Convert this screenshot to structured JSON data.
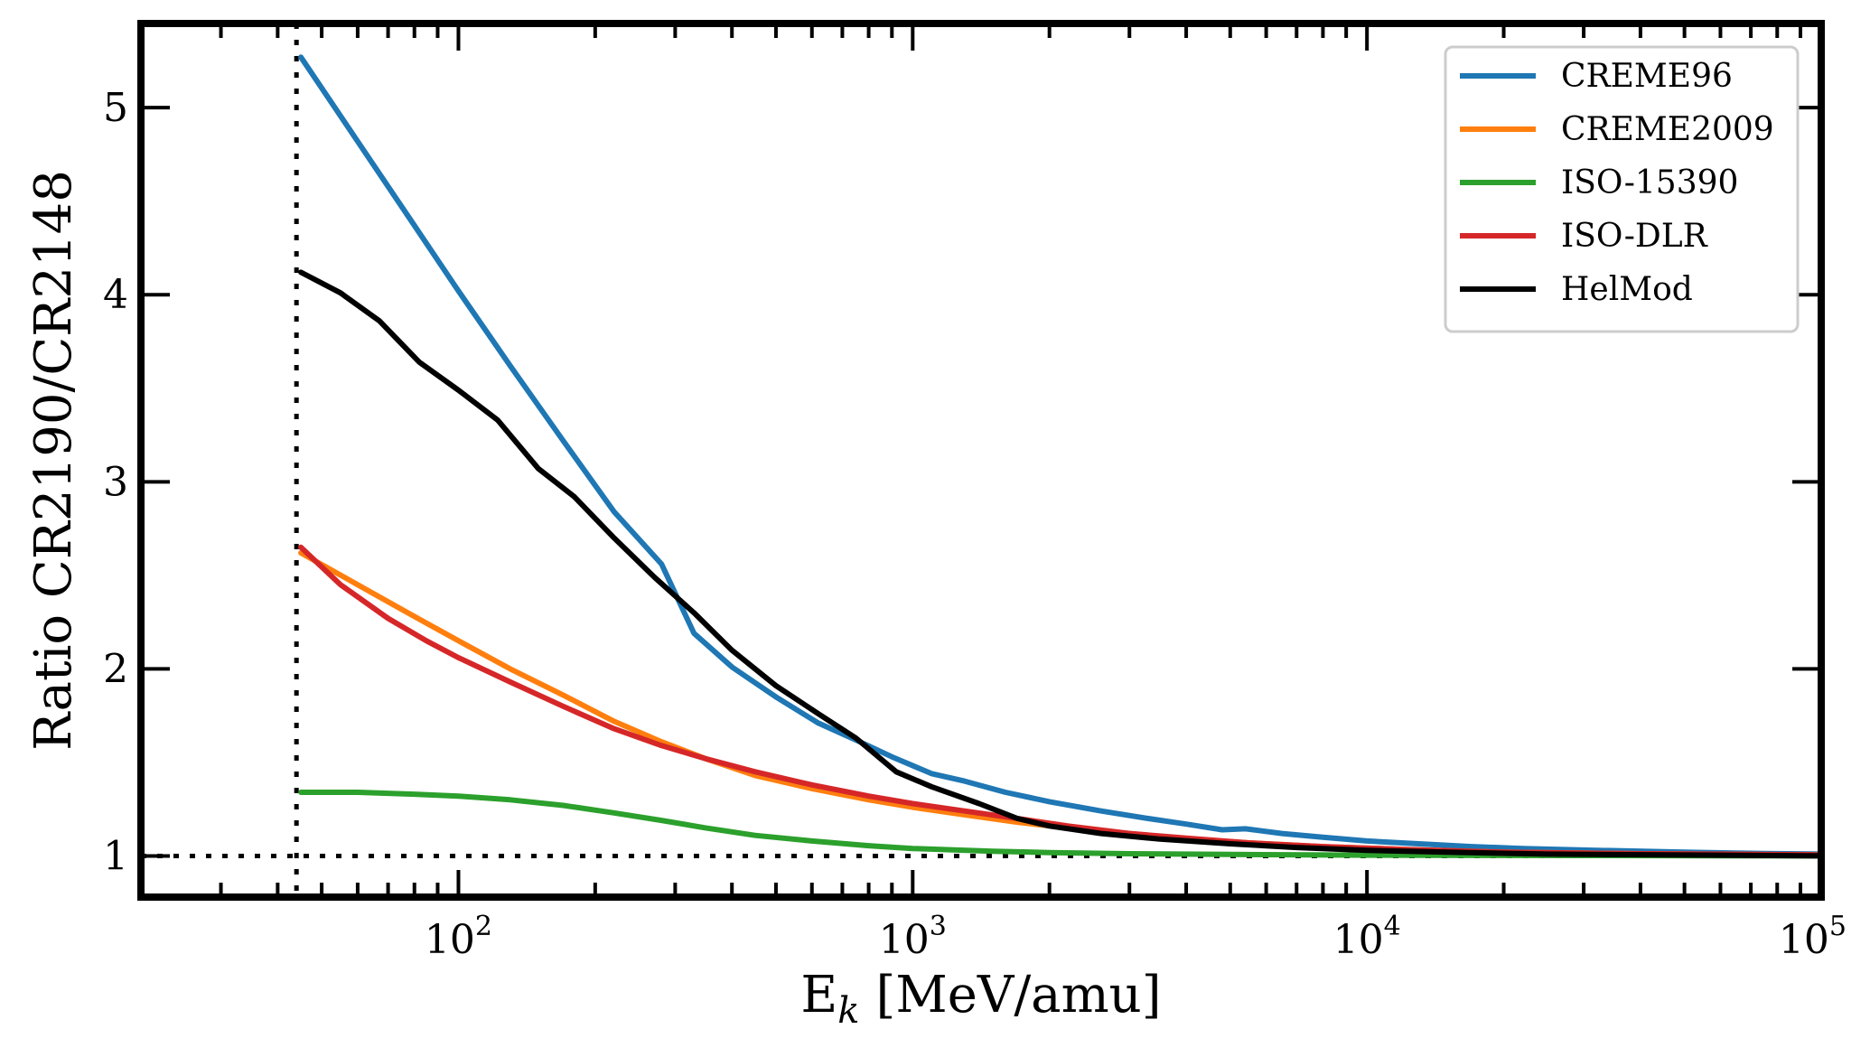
{
  "chart_data": {
    "type": "line",
    "xlabel": "E",
    "xlabel_sub": "k",
    "xlabel_unit": "[MeV/amu]",
    "ylabel": "Ratio CR2190/CR2148",
    "xscale": "log",
    "xlim": [
      20,
      100000
    ],
    "ylim": [
      0.78,
      5.45
    ],
    "x_ticks": [
      {
        "value": 100,
        "base": "10",
        "exp": "2"
      },
      {
        "value": 1000,
        "base": "10",
        "exp": "3"
      },
      {
        "value": 10000,
        "base": "10",
        "exp": "4"
      },
      {
        "value": 100000,
        "base": "10",
        "exp": "5"
      }
    ],
    "y_ticks": [
      {
        "value": 1,
        "label": "1"
      },
      {
        "value": 2,
        "label": "2"
      },
      {
        "value": 3,
        "label": "3"
      },
      {
        "value": 4,
        "label": "4"
      },
      {
        "value": 5,
        "label": "5"
      }
    ],
    "reference_lines": {
      "y": 1,
      "x": 44
    },
    "legend": {
      "position": "top-right"
    },
    "grid": false,
    "series": [
      {
        "name": "CREME96",
        "color": "#1f77b4",
        "points": [
          [
            45,
            5.27
          ],
          [
            60,
            4.82
          ],
          [
            80,
            4.37
          ],
          [
            100,
            4.02
          ],
          [
            130,
            3.62
          ],
          [
            170,
            3.22
          ],
          [
            220,
            2.84
          ],
          [
            280,
            2.56
          ],
          [
            330,
            2.19
          ],
          [
            400,
            2.01
          ],
          [
            500,
            1.85
          ],
          [
            620,
            1.71
          ],
          [
            750,
            1.62
          ],
          [
            900,
            1.53
          ],
          [
            1100,
            1.44
          ],
          [
            1300,
            1.4
          ],
          [
            1600,
            1.34
          ],
          [
            2000,
            1.29
          ],
          [
            2600,
            1.24
          ],
          [
            3300,
            1.2
          ],
          [
            4000,
            1.17
          ],
          [
            4800,
            1.14
          ],
          [
            5400,
            1.145
          ],
          [
            6500,
            1.12
          ],
          [
            8000,
            1.1
          ],
          [
            10000,
            1.08
          ],
          [
            13000,
            1.065
          ],
          [
            17000,
            1.05
          ],
          [
            22000,
            1.04
          ],
          [
            32000,
            1.03
          ],
          [
            50000,
            1.02
          ],
          [
            75000,
            1.013
          ],
          [
            100000,
            1.01
          ]
        ]
      },
      {
        "name": "CREME2009",
        "color": "#ff7f0e",
        "points": [
          [
            45,
            2.62
          ],
          [
            60,
            2.45
          ],
          [
            80,
            2.28
          ],
          [
            100,
            2.15
          ],
          [
            130,
            2.0
          ],
          [
            170,
            1.86
          ],
          [
            220,
            1.72
          ],
          [
            280,
            1.61
          ],
          [
            350,
            1.52
          ],
          [
            450,
            1.43
          ],
          [
            600,
            1.36
          ],
          [
            800,
            1.3
          ],
          [
            1000,
            1.26
          ],
          [
            1300,
            1.22
          ],
          [
            1700,
            1.18
          ],
          [
            2200,
            1.15
          ],
          [
            3000,
            1.12
          ],
          [
            4000,
            1.09
          ],
          [
            5500,
            1.07
          ],
          [
            8000,
            1.05
          ],
          [
            12000,
            1.035
          ],
          [
            20000,
            1.02
          ],
          [
            40000,
            1.012
          ],
          [
            100000,
            1.005
          ]
        ]
      },
      {
        "name": "ISO-15390",
        "color": "#2ca02c",
        "points": [
          [
            45,
            1.34
          ],
          [
            60,
            1.34
          ],
          [
            80,
            1.33
          ],
          [
            100,
            1.32
          ],
          [
            130,
            1.3
          ],
          [
            170,
            1.27
          ],
          [
            220,
            1.23
          ],
          [
            280,
            1.19
          ],
          [
            350,
            1.15
          ],
          [
            450,
            1.11
          ],
          [
            600,
            1.08
          ],
          [
            800,
            1.055
          ],
          [
            1000,
            1.04
          ],
          [
            1500,
            1.025
          ],
          [
            2000,
            1.018
          ],
          [
            3000,
            1.012
          ],
          [
            5000,
            1.008
          ],
          [
            10000,
            1.004
          ],
          [
            30000,
            1.002
          ],
          [
            100000,
            1.0
          ]
        ]
      },
      {
        "name": "ISO-DLR",
        "color": "#d62728",
        "points": [
          [
            45,
            2.65
          ],
          [
            55,
            2.45
          ],
          [
            70,
            2.27
          ],
          [
            85,
            2.15
          ],
          [
            100,
            2.06
          ],
          [
            130,
            1.93
          ],
          [
            170,
            1.8
          ],
          [
            220,
            1.68
          ],
          [
            280,
            1.59
          ],
          [
            350,
            1.52
          ],
          [
            450,
            1.45
          ],
          [
            600,
            1.38
          ],
          [
            800,
            1.32
          ],
          [
            1000,
            1.28
          ],
          [
            1300,
            1.24
          ],
          [
            1700,
            1.2
          ],
          [
            2200,
            1.16
          ],
          [
            3000,
            1.12
          ],
          [
            4000,
            1.095
          ],
          [
            5500,
            1.07
          ],
          [
            8000,
            1.05
          ],
          [
            12000,
            1.035
          ],
          [
            20000,
            1.02
          ],
          [
            40000,
            1.012
          ],
          [
            100000,
            1.006
          ]
        ]
      },
      {
        "name": "HelMod",
        "color": "#000000",
        "points": [
          [
            45,
            4.12
          ],
          [
            55,
            4.01
          ],
          [
            67,
            3.86
          ],
          [
            82,
            3.64
          ],
          [
            100,
            3.49
          ],
          [
            122,
            3.33
          ],
          [
            150,
            3.07
          ],
          [
            180,
            2.92
          ],
          [
            220,
            2.7
          ],
          [
            270,
            2.49
          ],
          [
            330,
            2.3
          ],
          [
            400,
            2.1
          ],
          [
            500,
            1.91
          ],
          [
            620,
            1.76
          ],
          [
            750,
            1.63
          ],
          [
            920,
            1.45
          ],
          [
            1100,
            1.37
          ],
          [
            1400,
            1.28
          ],
          [
            1700,
            1.2
          ],
          [
            2000,
            1.16
          ],
          [
            2600,
            1.12
          ],
          [
            3500,
            1.09
          ],
          [
            5000,
            1.065
          ],
          [
            7000,
            1.045
          ],
          [
            10000,
            1.03
          ],
          [
            15000,
            1.02
          ],
          [
            25000,
            1.01
          ],
          [
            50000,
            1.005
          ],
          [
            100000,
            1.0
          ]
        ]
      }
    ]
  }
}
